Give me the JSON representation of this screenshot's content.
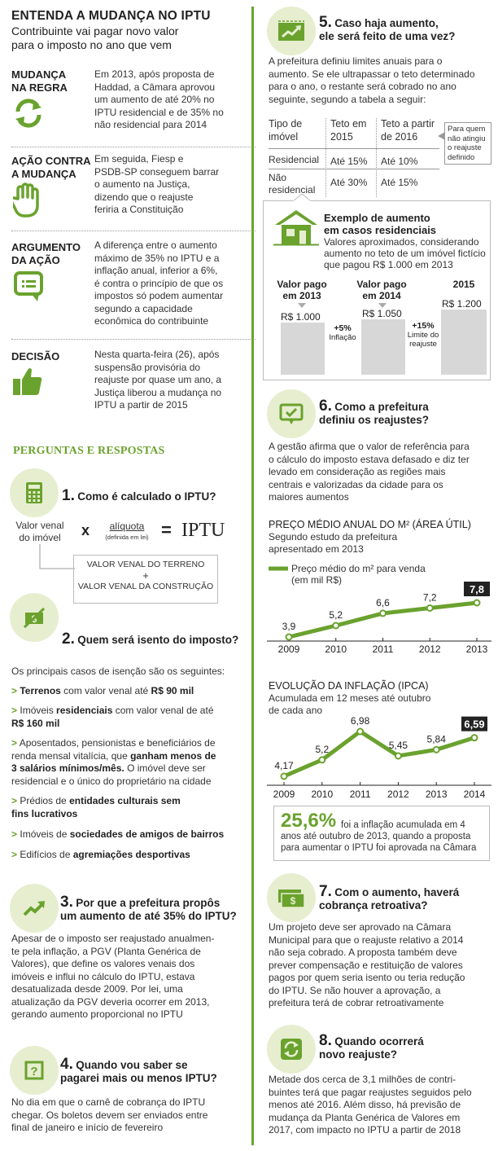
{
  "colors": {
    "accent": "#6aa22e",
    "circle": "#e6eecf",
    "dark": "#222222",
    "gray": "#d7d7d7"
  },
  "header": {
    "title": "ENTENDA A MUDANÇA NO IPTU",
    "subtitle_line1": "Contribuinte vai pagar novo valor",
    "subtitle_line2": "para o imposto no ano que vem"
  },
  "left_sections": [
    {
      "label1": "MUDANÇA",
      "label2": "NA REGRA",
      "icon": "refresh-icon",
      "lines": [
        "Em 2013, após proposta de",
        "Haddad, a Câmara aprovou",
        "um aumento de até 20% no",
        "IPTU residencial e de 35% no",
        "não residencial para 2014"
      ]
    },
    {
      "label1": "AÇÃO CONTRA",
      "label2": "A MUDANÇA",
      "icon": "stop-hand-icon",
      "lines": [
        "Em seguida, Fiesp e",
        "PSDB-SP conseguem barrar",
        "o aumento na Justiça,",
        "dizendo que o reajuste",
        "feriria a Constituição"
      ]
    },
    {
      "label1": "ARGUMENTO",
      "label2": "DA AÇÃO",
      "icon": "speech-bubble-icon",
      "lines": [
        "A diferença entre o aumento",
        "máximo de 35% no IPTU e a",
        "inflação anual, inferior a 6%,",
        "é contra o princípio de que os",
        "impostos só podem aumentar",
        "segundo a capacidade",
        "econômica do contribuinte"
      ]
    },
    {
      "label1": "DECISÃO",
      "label2": "",
      "icon": "thumbs-up-icon",
      "lines": [
        "Nesta quarta-feira (26), após",
        "suspensão provisória do",
        "reajuste por quase um ano, a",
        "Justiça liberou a mudança no",
        "IPTU a partir de 2015"
      ]
    }
  ],
  "qa_title": "PERGUNTAS E RESPOSTAS",
  "q1": {
    "num": "1.",
    "title": "Como é calculado o IPTU?",
    "venal1": "Valor venal",
    "venal2": "do imóvel",
    "times": "x",
    "aliquota": "alíquota",
    "aliquota_note": "(definida em lei)",
    "equals": "=",
    "iptu": "IPTU",
    "box1": "VALOR VENAL DO TERRENO",
    "plus": "+",
    "box2": "VALOR VENAL DA CONSTRUÇÃO"
  },
  "q2": {
    "num": "2.",
    "title": "Quem será isento do imposto?",
    "intro": "Os principais casos de isenção são os seguintes:",
    "b1_a": "Terrenos",
    "b1_b": " com valor venal até ",
    "b1_c": "R$ 90 mil",
    "b2_a": "Imóveis ",
    "b2_b": "residenciais",
    "b2_c": " com valor venal de até",
    "b2_d": "R$ 160 mil",
    "b3_1": "Aposentados, pensionistas e beneficiários de",
    "b3_2a": "renda mensal vitalícia, que ",
    "b3_2b": "ganham menos de",
    "b3_3a": "3 salários mínimos/mês.",
    "b3_3b": " O imóvel deve ser",
    "b3_4": "residencial e o único do proprietário na cidade",
    "b4_a": "Prédios de ",
    "b4_b": "entidades culturais sem",
    "b4_c": "fins lucrativos",
    "b5_a": "Imóveis de ",
    "b5_b": "sociedades de amigos de bairros",
    "b6_a": "Edifícios de ",
    "b6_b": "agremiações desportivas",
    "gt": ">"
  },
  "q3": {
    "num": "3.",
    "title1": "Por que a prefeitura propôs",
    "title2": "um aumento de até 35% do IPTU?",
    "lines": [
      "Apesar de o imposto ser reajustado anualmen-",
      "te pela inflação, a PGV (Planta Genérica de",
      "Valores), que define os valores venais dos",
      "imóveis e influi no cálculo do IPTU, estava",
      "desatualizada desde 2009. Por lei, uma",
      "atualização da PGV deveria ocorrer em 2013,",
      "gerando aumento proporcional no IPTU"
    ]
  },
  "q4": {
    "num": "4.",
    "title1": "Quando vou saber se",
    "title2": "pagarei mais ou menos IPTU?",
    "lines": [
      "No dia em que o carnê de cobrança do IPTU",
      "chegar. Os boletos devem ser enviados entre",
      "final de janeiro e início de fevereiro"
    ]
  },
  "q5": {
    "num": "5.",
    "title1": "Caso haja aumento,",
    "title2": "ele será feito de uma vez?",
    "lines": [
      "A prefeitura definiu limites anuais para o",
      "aumento. Se ele ultrapassar o teto determinado",
      "para o ano, o restante será cobrado no ano",
      "seguinte, segundo a tabela a seguir:"
    ],
    "table": {
      "h1a": "Tipo de",
      "h1b": "imóvel",
      "h2a": "Teto em",
      "h2b": "2015",
      "h3a": "Teto a partir",
      "h3b": "de 2016",
      "r1": [
        "Residencial",
        "Até 15%",
        "Até 10%"
      ],
      "r2a": "Não",
      "r2b": "residencial",
      "r2": [
        "Até 30%",
        "Até 15%"
      ],
      "note": [
        "Para quem",
        "não atingiu",
        "o reajuste",
        "definido"
      ]
    },
    "example": {
      "title1": "Exemplo de aumento",
      "title2": "em casos residenciais",
      "sub": [
        "Valores aproximados, considerando",
        "aumento no teto de um imóvel fictício",
        "que pagou R$ 1.000 em 2013"
      ],
      "c1a": "Valor pago",
      "c1b": "em 2013",
      "c2a": "Valor pago",
      "c2b": "em 2014",
      "c3": "2015",
      "v1": "R$ 1.000",
      "v2": "R$ 1.050",
      "v3": "R$ 1.200",
      "d1": "+5%",
      "d1b": "Inflação",
      "d2": "+15%",
      "d2b": "Limite do",
      "d2c": "reajuste"
    }
  },
  "q6": {
    "num": "6.",
    "title1": "Como a prefeitura",
    "title2": "definiu os reajustes?",
    "lines": [
      "A gestão afirma que o valor de referência para",
      "o cálculo do imposto estava defasado e diz ter",
      "levado em consideração as regiões mais",
      "centrais e valorizadas da cidade para os",
      "maiores aumentos"
    ]
  },
  "chart_data": [
    {
      "type": "line",
      "title": "PREÇO MÉDIO ANUAL DO M² (ÁREA ÚTIL)",
      "subtitle": [
        "Segundo estudo da prefeitura",
        "apresentado em 2013"
      ],
      "legend": [
        "Preço médio do m² para venda",
        "(em mil R$)"
      ],
      "x": [
        "2009",
        "2010",
        "2011",
        "2012",
        "2013"
      ],
      "values": [
        3.9,
        5.2,
        6.6,
        7.2,
        7.8
      ],
      "labels": [
        "3,9",
        "5,2",
        "6,6",
        "7,2",
        "7,8"
      ]
    },
    {
      "type": "line",
      "title": "EVOLUÇÃO DA INFLAÇÃO (IPCA)",
      "subtitle": [
        "Acumulada em 12 meses até outubro",
        "de cada ano"
      ],
      "x": [
        "2009",
        "2010",
        "2011",
        "2012",
        "2013",
        "2014"
      ],
      "values": [
        4.17,
        5.2,
        6.98,
        5.45,
        5.84,
        6.59
      ],
      "labels": [
        "4,17",
        "5,2",
        "6,98",
        "5,45",
        "5,84",
        "6,59"
      ]
    }
  ],
  "inflation_box": {
    "big": "25,6%",
    "lines": [
      "foi a inflação acumulada em 4",
      "anos até outubro de 2013, quando a proposta",
      "para aumentar o IPTU foi aprovada na Câmara"
    ]
  },
  "q7": {
    "num": "7.",
    "title1": "Com o aumento, haverá",
    "title2": "cobrança retroativa?",
    "lines": [
      "Um projeto deve ser aprovado na Câmara",
      "Municipal para que o reajuste relativo a 2014",
      "não seja cobrado. A proposta também deve",
      "prever compensação e restituição de valores",
      "pagos por quem seria isento ou teria redução",
      "do IPTU. Se não houver a aprovação, a",
      "prefeitura terá de cobrar retroativamente"
    ]
  },
  "q8": {
    "num": "8.",
    "title1": "Quando ocorrerá",
    "title2": "novo reajuste?",
    "lines": [
      "Metade dos cerca de 3,1 milhões de contri-",
      "buintes terá que pagar reajustes seguidos pelo",
      "menos até 2016. Além disso, há previsão de",
      "mudança da Planta Genérica de Valores em",
      "2017, com impacto no IPTU a partir de 2018"
    ]
  }
}
